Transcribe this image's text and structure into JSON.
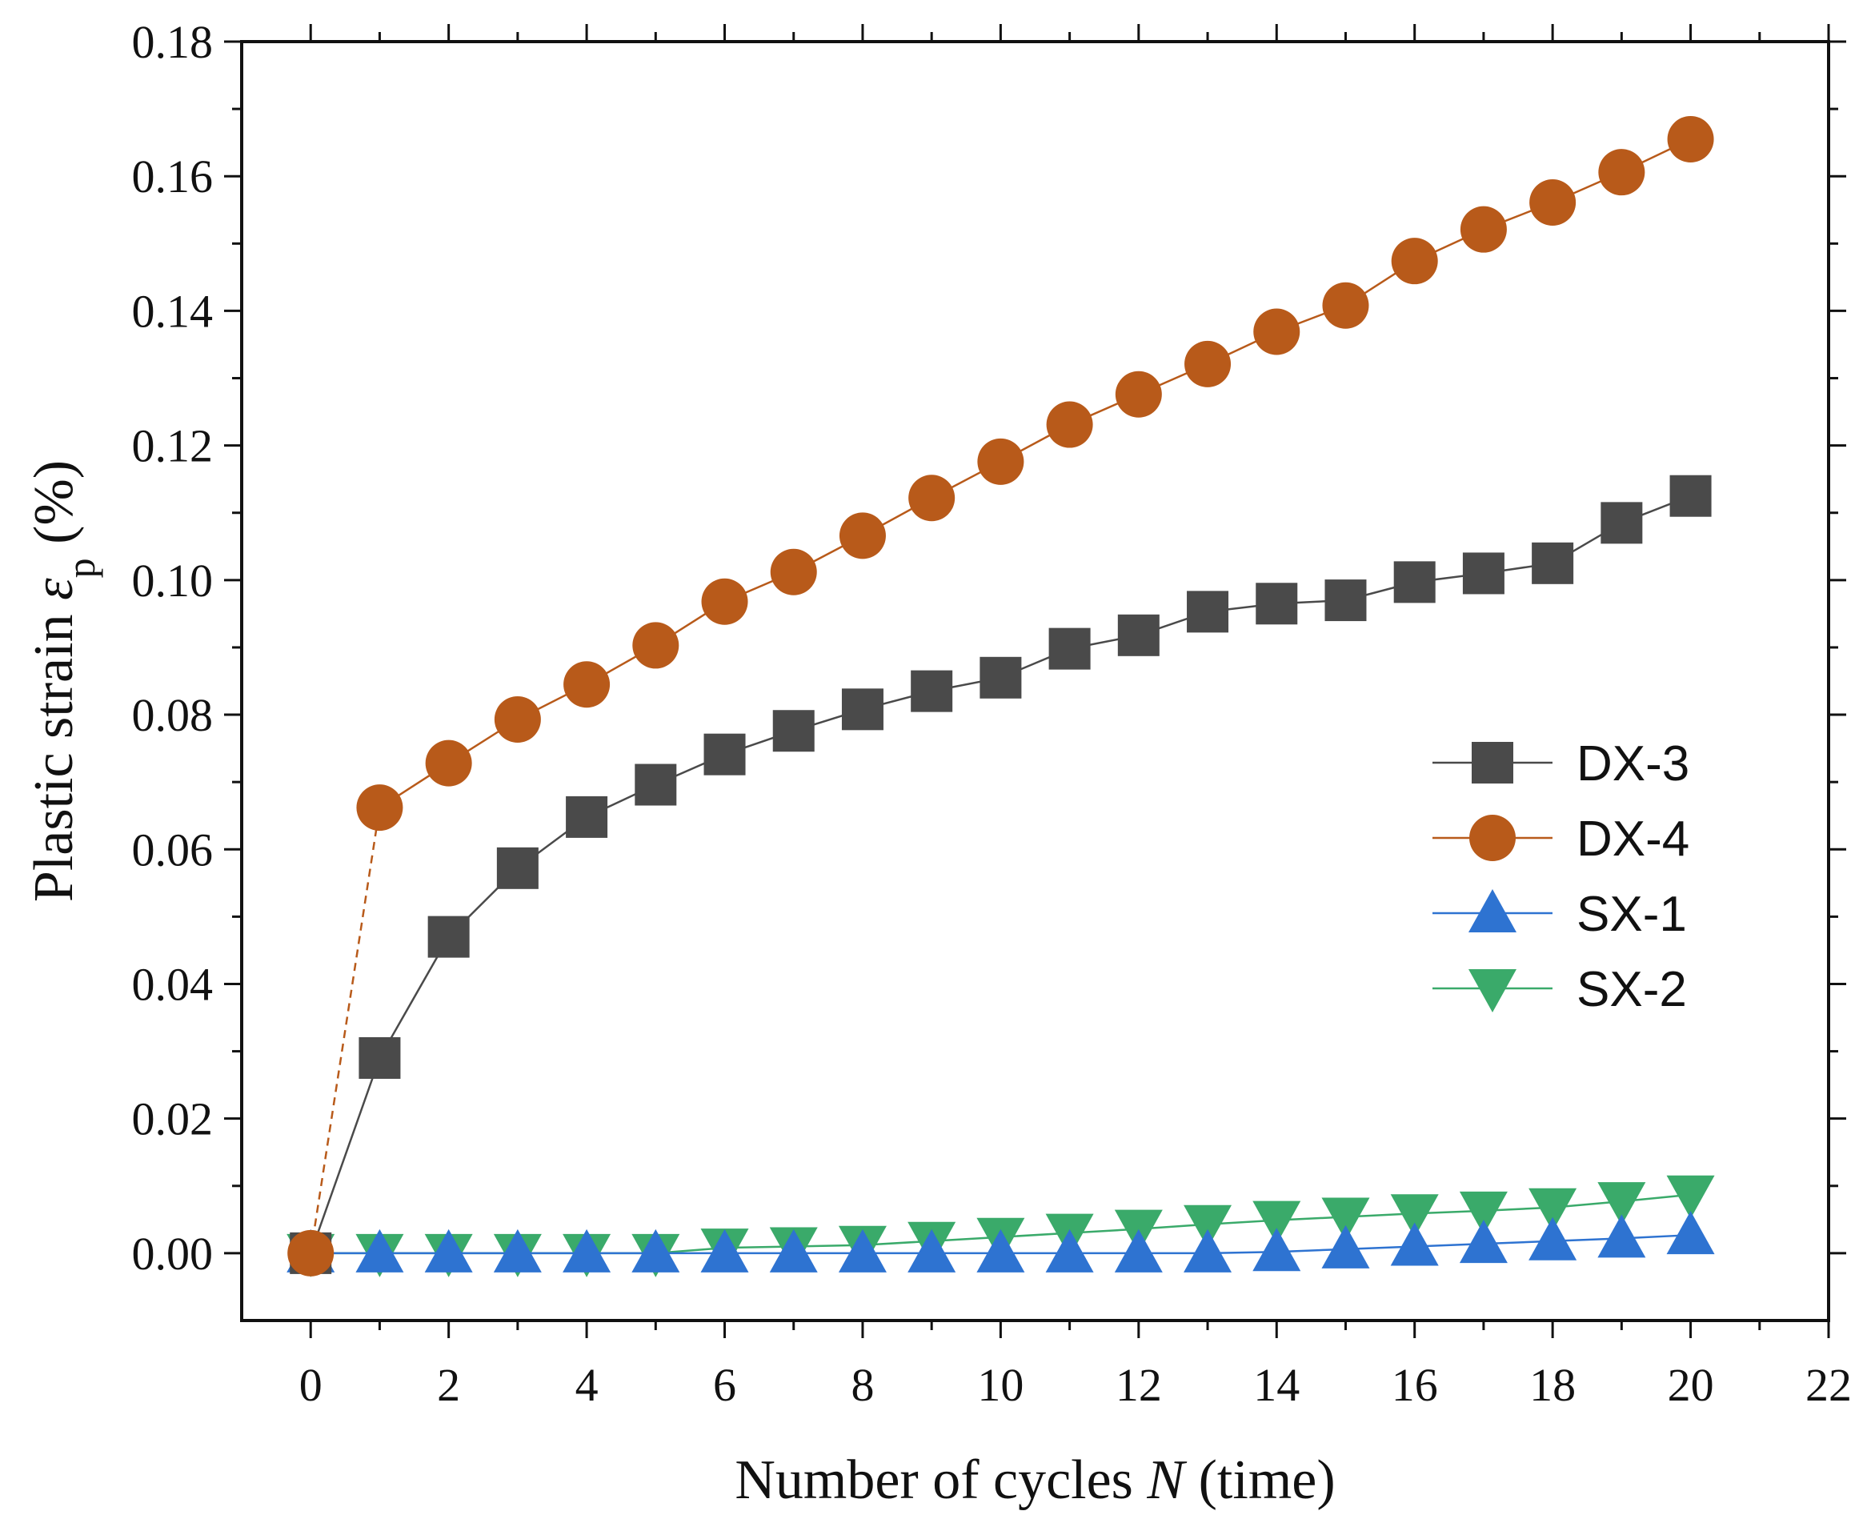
{
  "chart_data": {
    "type": "line",
    "xlabel": {
      "prefix": "Number of cycles ",
      "var": "N",
      "suffix": " (time)"
    },
    "ylabel": {
      "prefix": "Plastic strain ",
      "var": "ε",
      "sub": "p",
      "suffix": " (%)"
    },
    "xlim": [
      -1,
      22
    ],
    "ylim": [
      -0.01,
      0.18
    ],
    "xticks": [
      0,
      2,
      4,
      6,
      8,
      10,
      12,
      14,
      16,
      18,
      20,
      22
    ],
    "yticks": [
      0.0,
      0.02,
      0.04,
      0.06,
      0.08,
      0.1,
      0.12,
      0.14,
      0.16,
      0.18
    ],
    "x": [
      0,
      1,
      2,
      3,
      4,
      5,
      6,
      7,
      8,
      9,
      10,
      11,
      12,
      13,
      14,
      15,
      16,
      17,
      18,
      19,
      20
    ],
    "legend_position": "right-middle",
    "series": [
      {
        "name": "DX-3",
        "color": "#4a4a4a",
        "marker": "square",
        "dashed_first": false,
        "values": [
          0.0,
          0.029,
          0.047,
          0.0572,
          0.0648,
          0.0696,
          0.0741,
          0.0776,
          0.0808,
          0.0835,
          0.0855,
          0.0898,
          0.0918,
          0.0953,
          0.0965,
          0.097,
          0.0997,
          0.101,
          0.1025,
          0.1085,
          0.1125
        ]
      },
      {
        "name": "DX-4",
        "color": "#b85a1a",
        "marker": "circle",
        "dashed_first": true,
        "values": [
          0.0,
          0.0662,
          0.0728,
          0.0793,
          0.0845,
          0.0903,
          0.0968,
          0.1012,
          0.1066,
          0.1122,
          0.1176,
          0.1231,
          0.1276,
          0.1321,
          0.1369,
          0.1408,
          0.1474,
          0.1521,
          0.1561,
          0.1606,
          0.1655
        ]
      },
      {
        "name": "SX-1",
        "color": "#2e73d1",
        "marker": "triangle-up",
        "dashed_first": false,
        "values": [
          0.0,
          0.0,
          0.0,
          0.0,
          0.0,
          0.0,
          0.0,
          0.0,
          0.0,
          0.0,
          0.0,
          0.0,
          0.0,
          0.0,
          0.0002,
          0.0006,
          0.001,
          0.0014,
          0.0018,
          0.0022,
          0.0027
        ]
      },
      {
        "name": "SX-2",
        "color": "#3aaa6a",
        "marker": "triangle-down",
        "dashed_first": false,
        "values": [
          0.0,
          0.0,
          0.0,
          0.0,
          0.0,
          0.0,
          0.0008,
          0.001,
          0.0012,
          0.0018,
          0.0024,
          0.003,
          0.0036,
          0.0043,
          0.0049,
          0.0054,
          0.0059,
          0.0063,
          0.0068,
          0.0077,
          0.0087
        ]
      }
    ]
  }
}
